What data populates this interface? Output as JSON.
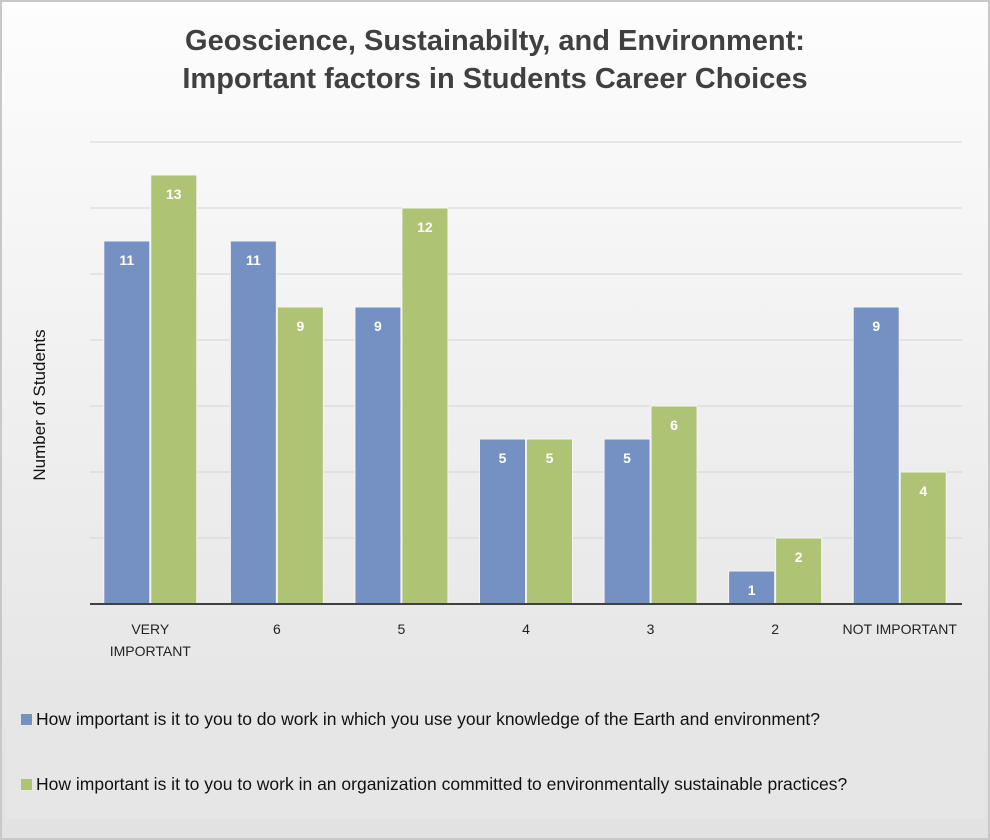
{
  "chart_data": {
    "type": "bar",
    "title": "Geoscience, Sustainabilty, and Environment:",
    "subtitle": "Important factors in Students Career Choices",
    "ylabel": "Number of Students",
    "xlabel": "",
    "ylim": [
      0,
      14
    ],
    "grid": true,
    "legend_position": "bottom",
    "categories": [
      "VERY IMPORTANT",
      "6",
      "5",
      "4",
      "3",
      "2",
      "NOT IMPORTANT"
    ],
    "series": [
      {
        "name": "How important is it to you to do work in which you use your knowledge of the Earth and environment?",
        "color": "#7591c4",
        "values": [
          11,
          11,
          9,
          5,
          5,
          1,
          9
        ]
      },
      {
        "name": "How important is it to you to work in an organization committed to environmentally sustainable practices?",
        "color": "#afc374",
        "values": [
          13,
          9,
          12,
          5,
          6,
          2,
          4
        ]
      }
    ]
  }
}
